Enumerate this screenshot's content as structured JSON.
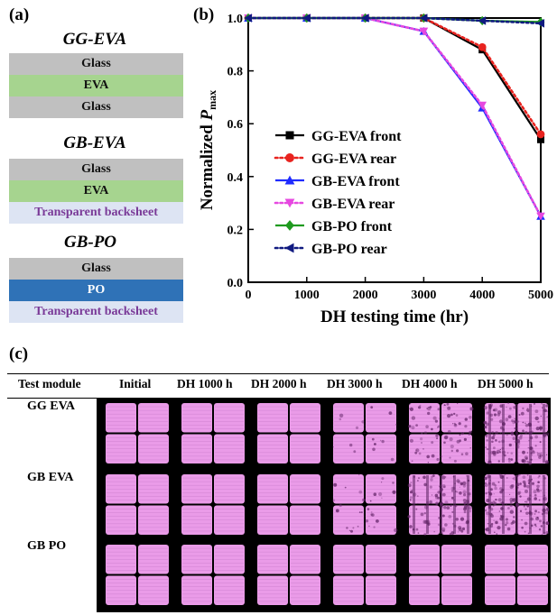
{
  "panels": {
    "a": "(a)",
    "b": "(b)",
    "c": "(c)"
  },
  "stacks": [
    {
      "title": "GG-EVA",
      "layers": [
        {
          "label": "Glass",
          "kind": "glass"
        },
        {
          "label": "EVA",
          "kind": "eva"
        },
        {
          "label": "Glass",
          "kind": "glass"
        }
      ]
    },
    {
      "title": "GB-EVA",
      "layers": [
        {
          "label": "Glass",
          "kind": "glass"
        },
        {
          "label": "EVA",
          "kind": "eva"
        },
        {
          "label": "Transparent backsheet",
          "kind": "bs"
        }
      ]
    },
    {
      "title": "GB-PO",
      "layers": [
        {
          "label": "Glass",
          "kind": "glass"
        },
        {
          "label": "PO",
          "kind": "po"
        },
        {
          "label": "Transparent backsheet",
          "kind": "bs"
        }
      ]
    }
  ],
  "chart_data": {
    "type": "line",
    "xlabel": "DH testing time (hr)",
    "ylabel_main": "Normalized ",
    "ylabel_italic": "P",
    "ylabel_sub": "max",
    "xlim": [
      0,
      5000
    ],
    "ylim": [
      0.0,
      1.0
    ],
    "x_ticks": [
      "0",
      "1000",
      "2000",
      "3000",
      "4000",
      "5000"
    ],
    "y_ticks": [
      "0.0",
      "0.2",
      "0.4",
      "0.6",
      "0.8",
      "1.0"
    ],
    "x": [
      0,
      1000,
      2000,
      3000,
      4000,
      5000
    ],
    "legend_position": "center-left",
    "series": [
      {
        "name": "GG-EVA front",
        "values": [
          1.0,
          1.0,
          1.0,
          1.0,
          0.88,
          0.54
        ],
        "color": "#000000",
        "dash": "solid",
        "marker": "square"
      },
      {
        "name": "GG-EVA rear",
        "values": [
          1.0,
          1.0,
          1.0,
          1.0,
          0.89,
          0.56
        ],
        "color": "#e8231f",
        "dash": "dotted",
        "marker": "circle"
      },
      {
        "name": "GB-EVA front",
        "values": [
          1.0,
          1.0,
          1.0,
          0.95,
          0.66,
          0.25
        ],
        "color": "#1f2bff",
        "dash": "solid",
        "marker": "triangle-up"
      },
      {
        "name": "GB-EVA rear",
        "values": [
          1.0,
          1.0,
          1.0,
          0.95,
          0.67,
          0.25
        ],
        "color": "#e648e0",
        "dash": "dotted",
        "marker": "triangle-down"
      },
      {
        "name": "GB-PO front",
        "values": [
          1.0,
          1.0,
          1.0,
          1.0,
          0.99,
          0.985
        ],
        "color": "#1f9a1f",
        "dash": "solid",
        "marker": "diamond"
      },
      {
        "name": "GB-PO rear",
        "values": [
          1.0,
          1.0,
          1.0,
          1.0,
          0.99,
          0.98
        ],
        "color": "#101a80",
        "dash": "dotted",
        "marker": "triangle-left"
      }
    ]
  },
  "el_table": {
    "headers": [
      "Test module",
      "Initial",
      "DH 1000 h",
      "DH 2000 h",
      "DH 3000 h",
      "DH 4000 h",
      "DH 5000 h"
    ],
    "rows": [
      {
        "label": "GG EVA",
        "degradation": [
          0,
          0,
          0,
          0.1,
          0.5,
          0.9
        ]
      },
      {
        "label": "GB EVA",
        "degradation": [
          0,
          0,
          0,
          0.2,
          0.7,
          1.0
        ]
      },
      {
        "label": "GB PO",
        "degradation": [
          0,
          0,
          0,
          0,
          0,
          0
        ]
      }
    ]
  }
}
